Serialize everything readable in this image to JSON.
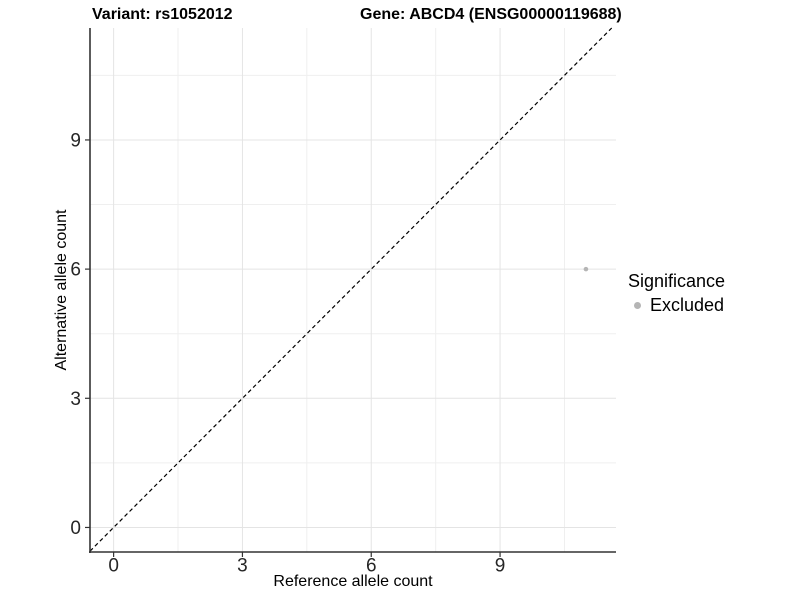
{
  "header": {
    "variant_title": "Variant: rs1052012",
    "gene_title": "Gene: ABCD4 (ENSG00000119688)"
  },
  "chart_data": {
    "type": "scatter",
    "title": "Variant: rs1052012    Gene: ABCD4 (ENSG00000119688)",
    "xlabel": "Reference allele count",
    "ylabel": "Alternative allele count",
    "xlim": [
      -0.55,
      11.7
    ],
    "ylim": [
      -0.57,
      11.6
    ],
    "x_ticks": [
      0,
      3,
      6,
      9
    ],
    "y_ticks": [
      0,
      3,
      6,
      9
    ],
    "x_minor_ticks": [
      1.5,
      4.5,
      7.5,
      10.5
    ],
    "y_minor_ticks": [
      1.5,
      4.5,
      7.5,
      10.5
    ],
    "grid": {
      "major_color": "#e4e4e4",
      "minor_color": "#efefef"
    },
    "axis_color": "#333333",
    "tick_label_color": "#262626",
    "reference_line": {
      "slope": 1,
      "intercept": 0,
      "style": "dashed",
      "color": "#000000"
    },
    "series": [
      {
        "name": "Excluded",
        "color": "#b5b5b5",
        "points": [
          [
            11,
            6
          ]
        ]
      }
    ],
    "legend": {
      "title": "Significance",
      "position": "right",
      "entries": [
        {
          "label": "Excluded",
          "color": "#b5b5b5"
        }
      ]
    }
  }
}
